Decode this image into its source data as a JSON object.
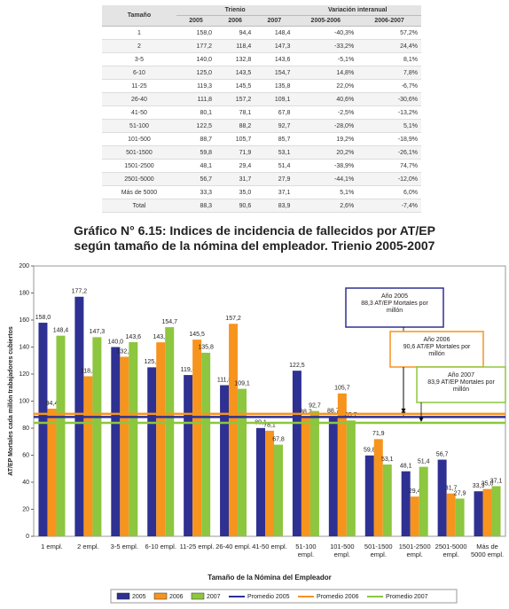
{
  "table": {
    "header": {
      "size": "Tamaño",
      "group1": "Trienio",
      "group2": "Variación interanual",
      "columns": [
        "2005",
        "2006",
        "2007",
        "2005-2006",
        "2006-2007"
      ]
    },
    "rows": [
      [
        "1",
        "158,0",
        "94,4",
        "148,4",
        "-40,3%",
        "57,2%"
      ],
      [
        "2",
        "177,2",
        "118,4",
        "147,3",
        "-33,2%",
        "24,4%"
      ],
      [
        "3-5",
        "140,0",
        "132,8",
        "143,6",
        "-5,1%",
        "8,1%"
      ],
      [
        "6-10",
        "125,0",
        "143,5",
        "154,7",
        "14,8%",
        "7,8%"
      ],
      [
        "11-25",
        "119,3",
        "145,5",
        "135,8",
        "22,0%",
        "-6,7%"
      ],
      [
        "26-40",
        "111,8",
        "157,2",
        "109,1",
        "40,6%",
        "-30,6%"
      ],
      [
        "41-50",
        "80,1",
        "78,1",
        "67,8",
        "-2,5%",
        "-13,2%"
      ],
      [
        "51-100",
        "122,5",
        "88,2",
        "92,7",
        "-28,0%",
        "5,1%"
      ],
      [
        "101-500",
        "88,7",
        "105,7",
        "85,7",
        "19,2%",
        "-18,9%"
      ],
      [
        "501-1500",
        "59,8",
        "71,9",
        "53,1",
        "20,2%",
        "-26,1%"
      ],
      [
        "1501-2500",
        "48,1",
        "29,4",
        "51,4",
        "-38,9%",
        "74,7%"
      ],
      [
        "2501-5000",
        "56,7",
        "31,7",
        "27,9",
        "-44,1%",
        "-12,0%"
      ],
      [
        "Más de 5000",
        "33,3",
        "35,0",
        "37,1",
        "5,1%",
        "6,0%"
      ],
      [
        "Total",
        "88,3",
        "90,6",
        "83,9",
        "2,6%",
        "-7,4%"
      ]
    ]
  },
  "caption": [
    "Gráfico N° 6.15: Indices de incidencia de fallecidos por AT/EP",
    "según tamaño de la nómina del empleador. Trienio 2005-2007"
  ],
  "chart_data": {
    "type": "bar",
    "ylabel": "AT/EP Mortales cada millón trabajadores cubiertos",
    "xlabel": "Tamaño de la Nómina del Empleador",
    "categories": [
      "1 empl.",
      "2 empl.",
      "3-5 empl.",
      "6-10 empl.",
      "11-25 empl.",
      "26-40 empl.",
      "41-50 empl.",
      "51-100 empl.",
      "101-500 empl.",
      "501-1500 empl.",
      "1501-2500 empl.",
      "2501-5000 empl.",
      "Más de 5000 empl."
    ],
    "series": [
      {
        "name": "2005",
        "color": "#2e3192",
        "values": [
          158.0,
          177.2,
          140.0,
          125.0,
          119.3,
          111.8,
          80.1,
          122.5,
          88.7,
          59.8,
          48.1,
          56.7,
          33.3
        ],
        "value_labels": [
          "158,0",
          "177,2",
          "140,0",
          "125,0",
          "119,3",
          "111,8",
          "80,1",
          "122,5",
          "88,7",
          "59,8",
          "48,1",
          "56,7",
          "33,3"
        ]
      },
      {
        "name": "2006",
        "color": "#f7941d",
        "values": [
          94.4,
          118.4,
          132.8,
          143.5,
          145.5,
          157.2,
          78.1,
          88.2,
          105.7,
          71.9,
          29.4,
          31.7,
          35.0
        ],
        "value_labels": [
          "94,4",
          "118,4",
          "132,8",
          "143,5",
          "145,5",
          "157,2",
          "78,1",
          "88,2",
          "105,7",
          "71,9",
          "29,4",
          "31,7",
          "35,0"
        ]
      },
      {
        "name": "2007",
        "color": "#8dc63f",
        "values": [
          148.4,
          147.3,
          143.6,
          154.7,
          135.8,
          109.1,
          67.8,
          92.7,
          85.7,
          53.1,
          51.4,
          27.9,
          37.1
        ],
        "value_labels": [
          "148,4",
          "147,3",
          "143,6",
          "154,7",
          "135,8",
          "109,1",
          "67,8",
          "92,7",
          "85,7",
          "53,1",
          "51,4",
          "27,9",
          "37,1"
        ]
      }
    ],
    "reference_lines": [
      {
        "name": "Promedio 2005",
        "value": 88.3,
        "color": "#2e3192",
        "annotation": [
          "Año 2005",
          "88,3 AT/EP Mortales por millón"
        ]
      },
      {
        "name": "Promedio 2006",
        "value": 90.6,
        "color": "#f7941d",
        "annotation": [
          "Año 2006",
          "90,6 AT/EP Mortales por millón"
        ]
      },
      {
        "name": "Promedio 2007",
        "value": 83.9,
        "color": "#8dc63f",
        "annotation": [
          "Año 2007",
          "83,9 AT/EP Mortales por millón"
        ]
      }
    ],
    "ylim": [
      0,
      200
    ],
    "yticks": [
      0,
      20,
      40,
      60,
      80,
      100,
      120,
      140,
      160,
      180,
      200
    ],
    "grid": false
  }
}
